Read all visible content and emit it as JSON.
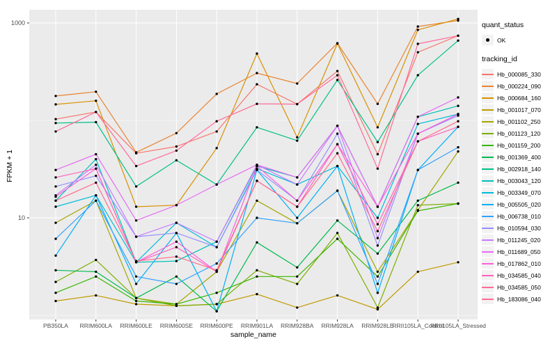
{
  "style": {
    "panel_bg": "#EBEBEB",
    "grid_color": "#FFFFFF",
    "axis_text_color": "#4D4D4D",
    "axis_title_color": "#000000",
    "tick_color": "#333333",
    "point_color": "#000000",
    "legend_key_bg": "#F2F2F2"
  },
  "chart_data": {
    "type": "line",
    "title": "",
    "xlabel": "sample_name",
    "ylabel": "FPKM + 1",
    "y_scale": "log10",
    "ylim": [
      0.9,
      1400
    ],
    "grid": true,
    "legend_position": "right",
    "y_ticks": [
      {
        "value": 10,
        "label": "10"
      },
      {
        "value": 1000,
        "label": "1000"
      }
    ],
    "y_gridlines_major": [
      10,
      1000
    ],
    "y_gridlines_minor": [
      1,
      100
    ],
    "categories": [
      "PB350LA",
      "RRIM600LA",
      "RRIM600LE",
      "RRIM600SE",
      "RRIM600PE",
      "RRIM901LA",
      "RRIM928BA",
      "RRIM928LA",
      "RRIM928LE",
      "RRII105LA_Control",
      "RRII105LA_Stressed"
    ],
    "legend": {
      "quant_status_title": "quant_status",
      "quant_status_items": [
        {
          "label": "OK",
          "shape": "point"
        }
      ],
      "tracking_id_title": "tracking_id"
    },
    "series": [
      {
        "name": "Hb_000085_330",
        "color": "#F8766D",
        "values": [
          103,
          122,
          46,
          54,
          77,
          235,
          147,
          321,
          45,
          500,
          740
        ]
      },
      {
        "name": "Hb_000224_090",
        "color": "#EA8331",
        "values": [
          178,
          197,
          47,
          74,
          187,
          306,
          239,
          620,
          148,
          920,
          1060
        ]
      },
      {
        "name": "Hb_000684_160",
        "color": "#D89000",
        "values": [
          146,
          159,
          13,
          13.5,
          52,
          485,
          67,
          615,
          85,
          850,
          1100
        ]
      },
      {
        "name": "Hb_001017_070",
        "color": "#C09B00",
        "values": [
          1.4,
          1.6,
          1.3,
          1.25,
          1.3,
          1.65,
          1.2,
          1.6,
          1.15,
          2.8,
          3.5
        ]
      },
      {
        "name": "Hb_001102_250",
        "color": "#A3A500",
        "values": [
          8.9,
          15,
          1.5,
          1.3,
          2.8,
          15,
          8.8,
          19,
          2.8,
          12,
          48
        ]
      },
      {
        "name": "Hb_001123_120",
        "color": "#7CAE00",
        "values": [
          2.2,
          3.7,
          1.5,
          1.25,
          1.3,
          2.9,
          2.1,
          7,
          1.2,
          13.5,
          14
        ]
      },
      {
        "name": "Hb_001159_200",
        "color": "#39B600",
        "values": [
          1.7,
          2.5,
          1.4,
          1.3,
          1.7,
          2.5,
          2.5,
          6.1,
          2.5,
          11.8,
          14
        ]
      },
      {
        "name": "Hb_001369_400",
        "color": "#00BB4E",
        "values": [
          2.9,
          2.8,
          1.5,
          2.5,
          1.1,
          5.6,
          3.1,
          9.4,
          4.3,
          15,
          23
        ]
      },
      {
        "name": "Hb_002918_140",
        "color": "#00C087",
        "values": [
          94,
          96,
          21,
          39,
          22,
          85,
          62,
          260,
          60,
          291,
          660
        ]
      },
      {
        "name": "Hb_003043_120",
        "color": "#00C0B8",
        "values": [
          15,
          40,
          3.5,
          3.6,
          5.7,
          34,
          26,
          88,
          13,
          109,
          141
        ]
      },
      {
        "name": "Hb_003349_070",
        "color": "#00BCD8",
        "values": [
          13,
          17,
          3.5,
          8.9,
          5,
          32,
          22,
          34,
          10,
          92,
          116
        ]
      },
      {
        "name": "Hb_005505_020",
        "color": "#00B0F6",
        "values": [
          4.1,
          17,
          2.1,
          7,
          1.1,
          31,
          10,
          34,
          1.7,
          31,
          86
        ]
      },
      {
        "name": "Hb_006738_010",
        "color": "#35A2FF",
        "values": [
          6.1,
          15,
          2.5,
          2.1,
          3.4,
          10,
          8.8,
          19,
          2.1,
          31,
          53
        ]
      },
      {
        "name": "Hb_010594_030",
        "color": "#9590FF",
        "values": [
          21,
          27,
          6.4,
          7,
          5,
          31,
          15,
          73,
          5.2,
          73,
          112
        ]
      },
      {
        "name": "Hb_011245_020",
        "color": "#C77CFF",
        "values": [
          17,
          35,
          6.4,
          8.9,
          5.7,
          35,
          22,
          88,
          6.2,
          73,
          116
        ]
      },
      {
        "name": "Hb_011689_050",
        "color": "#E76BF3",
        "values": [
          31,
          45,
          9.4,
          13.5,
          22,
          35,
          26,
          88,
          13,
          109,
          172
        ]
      },
      {
        "name": "Hb_017862_010",
        "color": "#FA62DB",
        "values": [
          16.5,
          32,
          3.5,
          5.7,
          2.8,
          34,
          15,
          57,
          13,
          73,
          116
        ]
      },
      {
        "name": "Hb_034585_040",
        "color": "#FF62BC",
        "values": [
          26,
          32,
          3.5,
          5,
          2.8,
          24,
          13,
          57,
          8.6,
          61,
          86
        ]
      },
      {
        "name": "Hb_034585_050",
        "color": "#FF6A98",
        "values": [
          77,
          122,
          34,
          49,
          98,
          148,
          147,
          291,
          32,
          611,
          740
        ]
      },
      {
        "name": "Hb_183086_040",
        "color": "#FF6C91",
        "values": [
          15,
          23,
          3.6,
          4,
          2.9,
          24,
          13,
          46,
          7.3,
          61,
          98
        ]
      }
    ]
  }
}
